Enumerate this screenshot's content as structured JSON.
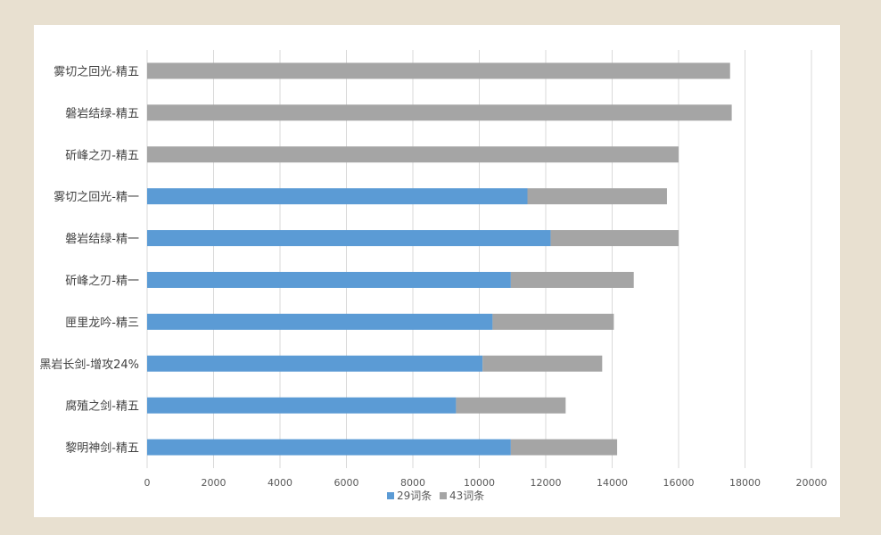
{
  "chart_data": {
    "type": "bar",
    "orientation": "horizontal",
    "stacked": true,
    "categories": [
      "雾切之回光-精五",
      "磐岩结绿-精五",
      "斫峰之刃-精五",
      "雾切之回光-精一",
      "磐岩结绿-精一",
      "斫峰之刃-精一",
      "匣里龙吟-精三",
      "黑岩长剑-增攻24%",
      "腐殖之剑-精五",
      "黎明神剑-精五"
    ],
    "series": [
      {
        "name": "29词条",
        "color": "#5b9bd5",
        "values": [
          0,
          0,
          0,
          11450,
          12150,
          10950,
          10400,
          10100,
          9300,
          10950
        ]
      },
      {
        "name": "43词条",
        "color": "#a5a5a5",
        "values": [
          17550,
          17600,
          16000,
          4200,
          3850,
          3700,
          3650,
          3600,
          3300,
          3200
        ]
      }
    ],
    "xlim": [
      0,
      20000
    ],
    "xticks": [
      "0",
      "2000",
      "4000",
      "6000",
      "8000",
      "10000",
      "12000",
      "14000",
      "16000",
      "18000",
      "20000"
    ],
    "grid": true,
    "legend_position": "bottom"
  }
}
